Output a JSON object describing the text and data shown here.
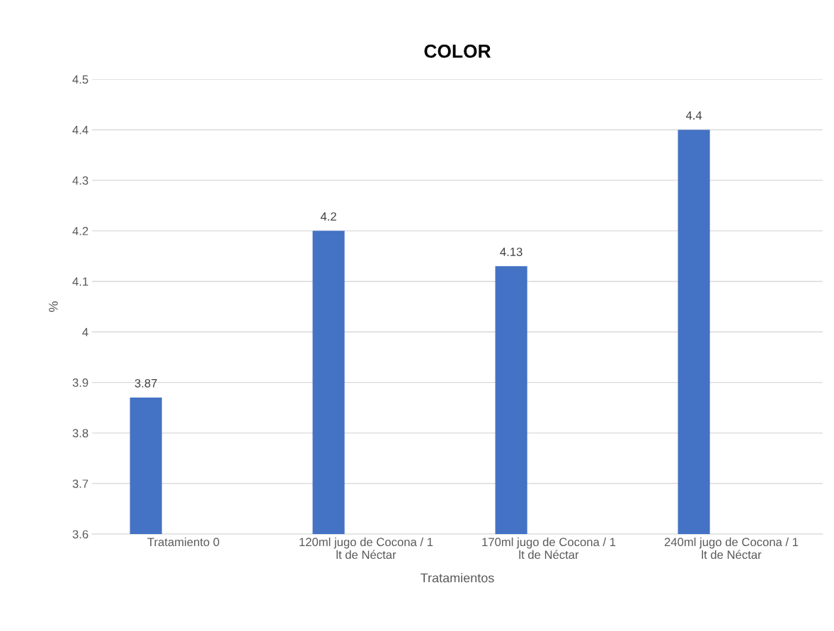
{
  "chart_data": {
    "type": "bar",
    "title": "COLOR",
    "xlabel": "Tratamientos",
    "ylabel": "%",
    "categories": [
      "Tratamiento 0",
      "120ml jugo de Cocona / 1 lt de Néctar",
      "170ml jugo de Cocona / 1 lt de Néctar",
      "240ml jugo de Cocona / 1 lt de Néctar"
    ],
    "values": [
      3.87,
      4.2,
      4.13,
      4.4
    ],
    "color": "#4472c4",
    "ylim": [
      3.6,
      4.5
    ],
    "yticks": [
      3.6,
      3.7,
      3.8,
      3.9,
      4,
      4.1,
      4.2,
      4.3,
      4.4,
      4.5
    ],
    "grid": "y",
    "data_labels": true
  }
}
